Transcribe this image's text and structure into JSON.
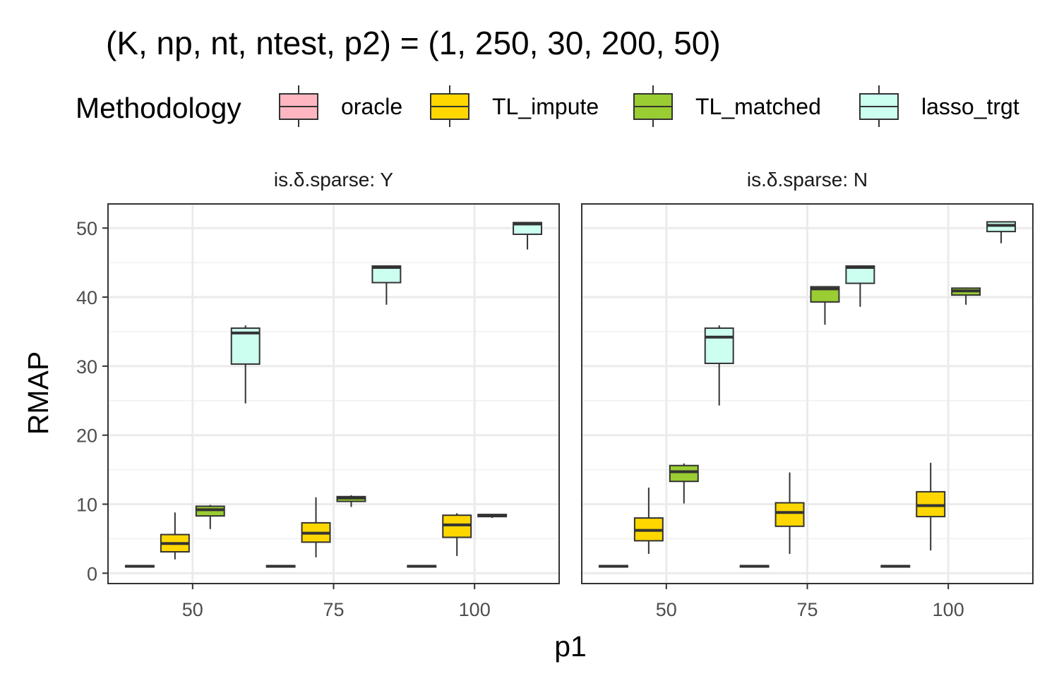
{
  "chart_data": {
    "type": "boxplot",
    "title": "(K, np, nt, ntest, p2) = (1, 250, 30, 200, 50)",
    "xlabel": "p1",
    "ylabel": "RMAP",
    "ylim": [
      -1.5,
      53.5
    ],
    "yticks": [
      "0",
      "10",
      "20",
      "30",
      "40",
      "50"
    ],
    "categories": [
      "50",
      "75",
      "100"
    ],
    "grid": true,
    "legend": {
      "title": "Methodology",
      "position": "top",
      "entries": [
        {
          "name": "oracle",
          "color": "#ffb6c1"
        },
        {
          "name": "TL_impute",
          "color": "#ffd700"
        },
        {
          "name": "TL_matched",
          "color": "#9acd32"
        },
        {
          "name": "lasso_trgt",
          "color": "#ccfff0"
        }
      ]
    },
    "panels": [
      {
        "label": "is.δ.sparse: Y",
        "groups": [
          {
            "category": "50",
            "boxes": {
              "oracle": {
                "lo": 0.8,
                "q1": 0.9,
                "med": 1.0,
                "q3": 1.1,
                "hi": 1.2
              },
              "TL_impute": {
                "lo": 2.0,
                "q1": 3.1,
                "med": 4.3,
                "q3": 5.6,
                "hi": 8.8
              },
              "TL_matched": {
                "lo": 6.4,
                "q1": 8.3,
                "med": 9.2,
                "q3": 9.7,
                "hi": 9.9
              },
              "lasso_trgt": {
                "lo": 24.6,
                "q1": 30.3,
                "med": 34.8,
                "q3": 35.5,
                "hi": 35.9
              }
            }
          },
          {
            "category": "75",
            "boxes": {
              "oracle": {
                "lo": 0.8,
                "q1": 0.9,
                "med": 1.0,
                "q3": 1.1,
                "hi": 1.2
              },
              "TL_impute": {
                "lo": 2.3,
                "q1": 4.5,
                "med": 5.8,
                "q3": 7.3,
                "hi": 11.0
              },
              "TL_matched": {
                "lo": 9.6,
                "q1": 10.4,
                "med": 10.9,
                "q3": 11.1,
                "hi": 11.3
              },
              "lasso_trgt": {
                "lo": 38.9,
                "q1": 42.1,
                "med": 44.3,
                "q3": 44.5,
                "hi": 44.6
              }
            }
          },
          {
            "category": "100",
            "boxes": {
              "oracle": {
                "lo": 0.8,
                "q1": 0.9,
                "med": 1.0,
                "q3": 1.1,
                "hi": 1.2
              },
              "TL_impute": {
                "lo": 2.5,
                "q1": 5.2,
                "med": 7.0,
                "q3": 8.4,
                "hi": 8.7
              },
              "TL_matched": {
                "lo": 8.0,
                "q1": 8.2,
                "med": 8.4,
                "q3": 8.5,
                "hi": 8.6
              },
              "lasso_trgt": {
                "lo": 46.9,
                "q1": 49.1,
                "med": 50.6,
                "q3": 50.8,
                "hi": 50.9
              }
            }
          }
        ]
      },
      {
        "label": "is.δ.sparse: N",
        "groups": [
          {
            "category": "50",
            "boxes": {
              "oracle": {
                "lo": 0.8,
                "q1": 0.9,
                "med": 1.0,
                "q3": 1.1,
                "hi": 1.2
              },
              "TL_impute": {
                "lo": 2.8,
                "q1": 4.7,
                "med": 6.2,
                "q3": 8.0,
                "hi": 12.4
              },
              "TL_matched": {
                "lo": 10.1,
                "q1": 13.3,
                "med": 14.7,
                "q3": 15.6,
                "hi": 15.9
              },
              "lasso_trgt": {
                "lo": 24.3,
                "q1": 30.4,
                "med": 34.2,
                "q3": 35.5,
                "hi": 35.9
              }
            }
          },
          {
            "category": "75",
            "boxes": {
              "oracle": {
                "lo": 0.8,
                "q1": 0.9,
                "med": 1.0,
                "q3": 1.1,
                "hi": 1.2
              },
              "TL_impute": {
                "lo": 2.8,
                "q1": 6.8,
                "med": 8.8,
                "q3": 10.2,
                "hi": 14.6
              },
              "TL_matched": {
                "lo": 36.0,
                "q1": 39.3,
                "med": 41.2,
                "q3": 41.5,
                "hi": 41.6
              },
              "lasso_trgt": {
                "lo": 38.6,
                "q1": 42.0,
                "med": 44.3,
                "q3": 44.5,
                "hi": 44.6
              }
            }
          },
          {
            "category": "100",
            "boxes": {
              "oracle": {
                "lo": 0.8,
                "q1": 0.9,
                "med": 1.0,
                "q3": 1.1,
                "hi": 1.2
              },
              "TL_impute": {
                "lo": 3.3,
                "q1": 8.2,
                "med": 9.8,
                "q3": 11.8,
                "hi": 16.0
              },
              "TL_matched": {
                "lo": 38.9,
                "q1": 40.3,
                "med": 40.9,
                "q3": 41.3,
                "hi": 41.4
              },
              "lasso_trgt": {
                "lo": 47.8,
                "q1": 49.5,
                "med": 50.4,
                "q3": 50.9,
                "hi": 51.0
              }
            }
          }
        ]
      }
    ]
  }
}
